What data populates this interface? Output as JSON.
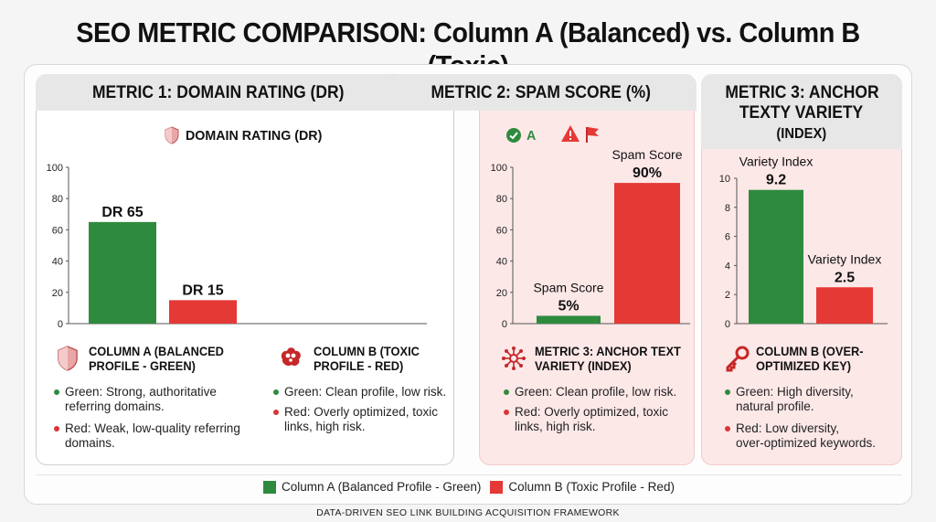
{
  "title": "SEO METRIC COMPARISON: Column A (Balanced) vs. Column B (Toxic)",
  "footer": "DATA-DRIVEN SEO LINK BUILDING ACQUISITION FRAMEWORK",
  "colors": {
    "green": "#2e8b3e",
    "red": "#e53935",
    "panel_pink": "#fde8e8"
  },
  "tabs": {
    "metric1": "METRIC 1: DOMAIN RATING (DR)",
    "metric2": "METRIC 2: SPAM SCORE (%)",
    "metric3_line1": "METRIC 3: ANCHOR",
    "metric3_line2": "TEXTY VARIETY",
    "metric3_line3": "(INDEX)"
  },
  "panel1": {
    "chart_heading": "DOMAIN RATING (DR)",
    "col_a_heading_line1": "COLUMN A (BALANCED",
    "col_a_heading_line2": "PROFILE - GREEN)",
    "col_a_bullets": [
      {
        "line1": "Green: Strong, authoritative",
        "line2": "referring domains."
      },
      {
        "line1": "Red: Weak, low-quality referring",
        "line2": "domains."
      }
    ],
    "col_b_heading_line1": "COLUMN B (TOXIC",
    "col_b_heading_line2": "PROFILE - RED)",
    "col_b_bullets": [
      {
        "line1": "Green: Clean profile, low risk.",
        "line2": ""
      },
      {
        "line1": "Red: Overly optimized, toxic",
        "line2": "links, high risk."
      }
    ]
  },
  "panel2": {
    "status_a": "A",
    "heading_line1": "METRIC 3: ANCHOR TEXT",
    "heading_line2": "VARIETY (INDEX)",
    "bullets": [
      {
        "line1": "Green: Clean profile, low risk.",
        "line2": ""
      },
      {
        "line1": "Red: Overly optimized, toxic",
        "line2": "links, high risk."
      }
    ]
  },
  "panel3": {
    "heading_line1": "COLUMN B (OVER-",
    "heading_line2": "OPTIMIZED KEY)",
    "bullets": [
      {
        "line1": "Green: High diversity,",
        "line2": "natural profile."
      },
      {
        "line1": "Red: Low diversity,",
        "line2": "over-optimized keywords."
      }
    ]
  },
  "legend": {
    "a": "Column A (Balanced Profile - Green)",
    "b": "Column B (Toxic Profile - Red)"
  },
  "chart_data": [
    {
      "type": "bar",
      "title": "DOMAIN RATING (DR)",
      "categories": [
        "Column A",
        "Column B"
      ],
      "values": [
        65,
        15
      ],
      "data_labels": [
        "DR 65",
        "DR 15"
      ],
      "ylim": [
        0,
        100
      ],
      "yticks": [
        0,
        20,
        40,
        60,
        80,
        100
      ]
    },
    {
      "type": "bar",
      "title": "",
      "categories": [
        "Column A",
        "Column B"
      ],
      "values": [
        5,
        90
      ],
      "series_labels": [
        "Spam Score",
        "Spam Score"
      ],
      "data_labels": [
        "5%",
        "90%"
      ],
      "ylim": [
        0,
        100
      ],
      "yticks": [
        0,
        20,
        40,
        60,
        80,
        100
      ]
    },
    {
      "type": "bar",
      "title": "",
      "categories": [
        "Column A",
        "Column B"
      ],
      "values": [
        9.2,
        2.5
      ],
      "series_labels": [
        "Variety Index",
        "Variety Index"
      ],
      "data_labels": [
        "9.2",
        "2.5"
      ],
      "ylim": [
        0,
        10
      ],
      "yticks": [
        0,
        2,
        4,
        6,
        8,
        10
      ]
    }
  ]
}
